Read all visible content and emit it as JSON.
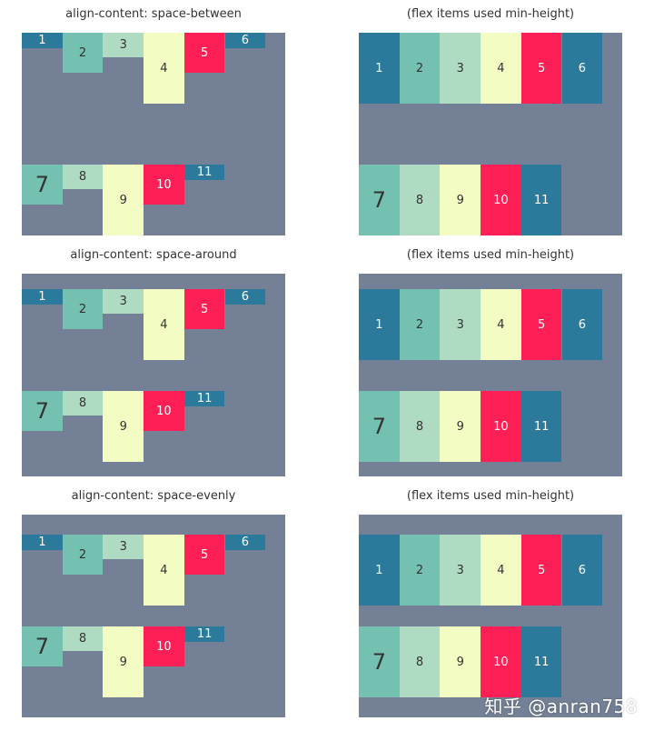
{
  "rows": [
    {
      "left_caption": "align-content: space-between",
      "right_caption": "(flex items used min-height)"
    },
    {
      "left_caption": "align-content: space-around",
      "right_caption": "(flex items used min-height)"
    },
    {
      "left_caption": "align-content: space-evenly",
      "right_caption": "(flex items used min-height)"
    }
  ],
  "items": [
    {
      "label": "1",
      "color": "#2b7a9c",
      "text_color": "#ffffff"
    },
    {
      "label": "2",
      "color": "#74c0b1",
      "text_color": "#333333"
    },
    {
      "label": "3",
      "color": "#b0dbc3",
      "text_color": "#333333"
    },
    {
      "label": "4",
      "color": "#f3fcc2",
      "text_color": "#333333"
    },
    {
      "label": "5",
      "color": "#ff1f57",
      "text_color": "#ffffff"
    },
    {
      "label": "6",
      "color": "#2b7a9c",
      "text_color": "#ffffff"
    },
    {
      "label": "7",
      "color": "#74c0b1",
      "text_color": "#333333"
    },
    {
      "label": "8",
      "color": "#b0dbc3",
      "text_color": "#333333"
    },
    {
      "label": "9",
      "color": "#f3fcc2",
      "text_color": "#333333"
    },
    {
      "label": "10",
      "color": "#ff1f57",
      "text_color": "#ffffff"
    },
    {
      "label": "11",
      "color": "#2b7a9c",
      "text_color": "#ffffff"
    }
  ],
  "panel_color": "#738095",
  "watermark": "知乎 @anran758"
}
